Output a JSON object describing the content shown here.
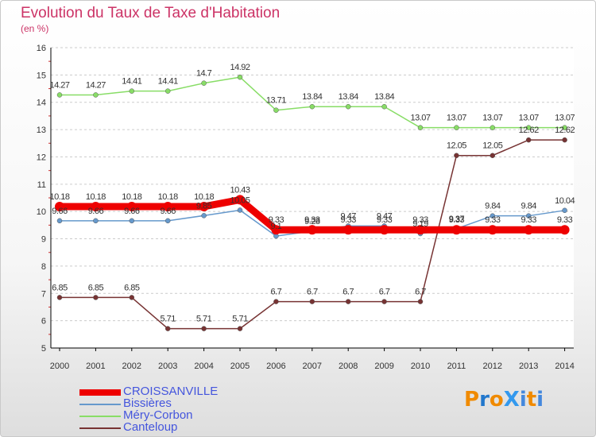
{
  "title": "Evolution du Taux de Taxe d'Habitation",
  "unit": "(en %)",
  "logo": {
    "text": "ProXiti",
    "letter_colors": [
      "#f08a00",
      "#2277cc",
      "#f08a00",
      "#3399ee",
      "#4488dd",
      "#f08a00",
      "#4488dd"
    ]
  },
  "chart_data": {
    "type": "line",
    "title": "Evolution du Taux de Taxe d'Habitation",
    "ylabel": "(en %)",
    "xlabel": "",
    "x": [
      "2000",
      "2001",
      "2002",
      "2003",
      "2004",
      "2005",
      "2006",
      "2007",
      "2008",
      "2009",
      "2010",
      "2011",
      "2012",
      "2013",
      "2014"
    ],
    "y_ticks": [
      5,
      6,
      7,
      8,
      9,
      10,
      11,
      12,
      13,
      14,
      15,
      16
    ],
    "ylim": [
      5,
      16
    ],
    "grid": "horizontal dashed",
    "legend_position": "bottom-left",
    "series": [
      {
        "name": "CROISSANVILLE",
        "color": "#ee0000",
        "width": 9,
        "values": [
          10.18,
          10.18,
          10.18,
          10.18,
          10.18,
          10.43,
          9.33,
          9.33,
          9.33,
          9.33,
          9.33,
          9.33,
          9.33,
          9.33,
          9.33
        ],
        "labels": [
          "10.18",
          "10.18",
          "10.18",
          "10.18",
          "10.18",
          "10.43",
          "9.33",
          "9.33",
          "9.33",
          "9.33",
          "9.33",
          "9.33",
          "9.33",
          "9.33",
          "9.33"
        ]
      },
      {
        "name": "Bissières",
        "color": "#6699cc",
        "width": 1.5,
        "values": [
          9.66,
          9.66,
          9.66,
          9.66,
          9.85,
          10.05,
          9.1,
          9.28,
          9.47,
          9.47,
          9.19,
          9.37,
          9.84,
          9.84,
          10.04
        ],
        "labels": [
          "9.66",
          "9.66",
          "9.66",
          "9.66",
          "9.85",
          "10.05",
          "9.1",
          "9.28",
          "9.47",
          "9.47",
          "9.19",
          "9.37",
          "9.84",
          "9.84",
          "10.04"
        ]
      },
      {
        "name": "Méry-Corbon",
        "color": "#88dd66",
        "width": 1.5,
        "values": [
          14.27,
          14.27,
          14.41,
          14.41,
          14.7,
          14.92,
          13.71,
          13.84,
          13.84,
          13.84,
          13.07,
          13.07,
          13.07,
          13.07,
          13.07
        ],
        "labels": [
          "14.27",
          "14.27",
          "14.41",
          "14.41",
          "14.7",
          "14.92",
          "13.71",
          "13.84",
          "13.84",
          "13.84",
          "13.07",
          "13.07",
          "13.07",
          "13.07",
          "13.07"
        ]
      },
      {
        "name": "Canteloup",
        "color": "#773333",
        "width": 1.5,
        "values": [
          6.85,
          6.85,
          6.85,
          5.71,
          5.71,
          5.71,
          6.7,
          6.7,
          6.7,
          6.7,
          6.7,
          12.05,
          12.05,
          12.62,
          12.62
        ],
        "labels": [
          "6.85",
          "6.85",
          "6.85",
          "5.71",
          "5.71",
          "5.71",
          "6.7",
          "6.7",
          "6.7",
          "6.7",
          "6.7",
          "12.05",
          "12.05",
          "12.62",
          "12.62"
        ]
      }
    ]
  }
}
